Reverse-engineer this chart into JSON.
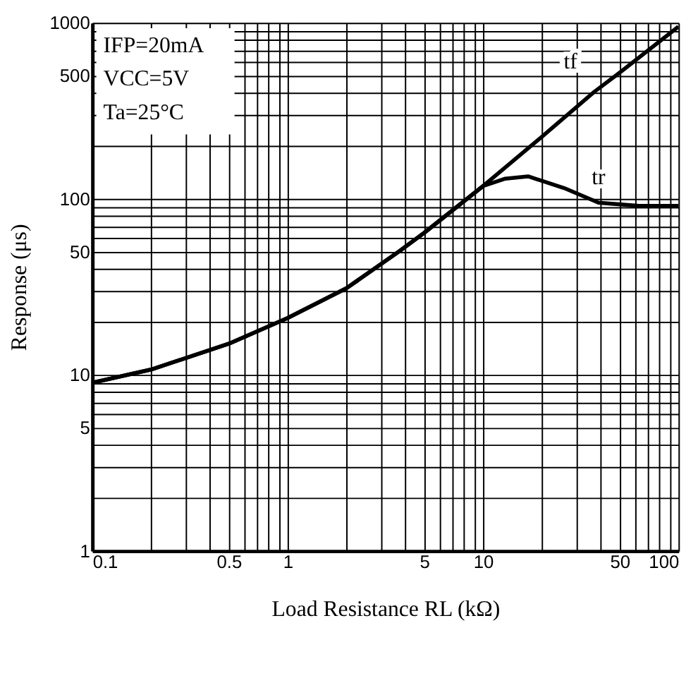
{
  "chart_data": {
    "type": "line",
    "xlabel": "Load Resistance RL (kΩ)",
    "ylabel": "Response (μs)",
    "annotations": [
      "IFP=20mA",
      "VCC=5V",
      "Ta=25°C"
    ],
    "series": [
      {
        "name": "tf",
        "color": "#000000",
        "x": [
          0.1,
          0.2,
          0.5,
          1,
          2,
          3.7,
          5,
          10,
          20,
          37,
          50,
          100
        ],
        "values": [
          9,
          10.7,
          15,
          21,
          31,
          50,
          64,
          118,
          225,
          404,
          520,
          950
        ]
      },
      {
        "name": "tr",
        "color": "#000000",
        "x": [
          0.1,
          0.2,
          0.5,
          1,
          2,
          3.7,
          5,
          10,
          13,
          17,
          26,
          39,
          63,
          100
        ],
        "values": [
          9,
          10.7,
          15,
          21,
          31,
          50,
          64,
          118,
          130,
          134,
          115,
          95,
          91,
          91
        ]
      }
    ],
    "log": "xy",
    "xlim": [
      0.1,
      100
    ],
    "ylim": [
      1,
      1000
    ],
    "xticks": [
      0.1,
      {
        "value": 0.2,
        "label": null
      },
      {
        "value": 0.3,
        "label": null
      },
      {
        "value": 0.4,
        "label": null
      },
      0.5,
      {
        "value": 0.6,
        "label": null
      },
      {
        "value": 0.7,
        "label": null
      },
      {
        "value": 0.8,
        "label": null
      },
      {
        "value": 0.9,
        "label": null
      },
      1,
      {
        "value": 2,
        "label": null
      },
      {
        "value": 3,
        "label": null
      },
      {
        "value": 4,
        "label": null
      },
      5,
      {
        "value": 6,
        "label": null
      },
      {
        "value": 7,
        "label": null
      },
      {
        "value": 8,
        "label": null
      },
      {
        "value": 9,
        "label": null
      },
      10,
      {
        "value": 20,
        "label": null
      },
      {
        "value": 30,
        "label": null
      },
      {
        "value": 40,
        "label": null
      },
      50,
      {
        "value": 60,
        "label": null
      },
      {
        "value": 70,
        "label": null
      },
      {
        "value": 80,
        "label": null
      },
      {
        "value": 90,
        "label": null
      },
      100
    ],
    "yticks": [
      1,
      {
        "value": 2,
        "label": null
      },
      {
        "value": 3,
        "label": null
      },
      {
        "value": 4,
        "label": null
      },
      5,
      {
        "value": 6,
        "label": null
      },
      {
        "value": 7,
        "label": null
      },
      {
        "value": 8,
        "label": null
      },
      {
        "value": 9,
        "label": null
      },
      10,
      {
        "value": 20,
        "label": null
      },
      {
        "value": 30,
        "label": null
      },
      {
        "value": 40,
        "label": null
      },
      50,
      {
        "value": 60,
        "label": null
      },
      {
        "value": 70,
        "label": null
      },
      {
        "value": 80,
        "label": null
      },
      {
        "value": 90,
        "label": null
      },
      100,
      {
        "value": 200,
        "label": null
      },
      {
        "value": 300,
        "label": null
      },
      {
        "value": 400,
        "label": null
      },
      500,
      {
        "value": 600,
        "label": null
      },
      {
        "value": 700,
        "label": null
      },
      {
        "value": 800,
        "label": null
      },
      {
        "value": 900,
        "label": null
      },
      1000
    ],
    "grid": true,
    "marker": "none",
    "line_style": "solid"
  }
}
